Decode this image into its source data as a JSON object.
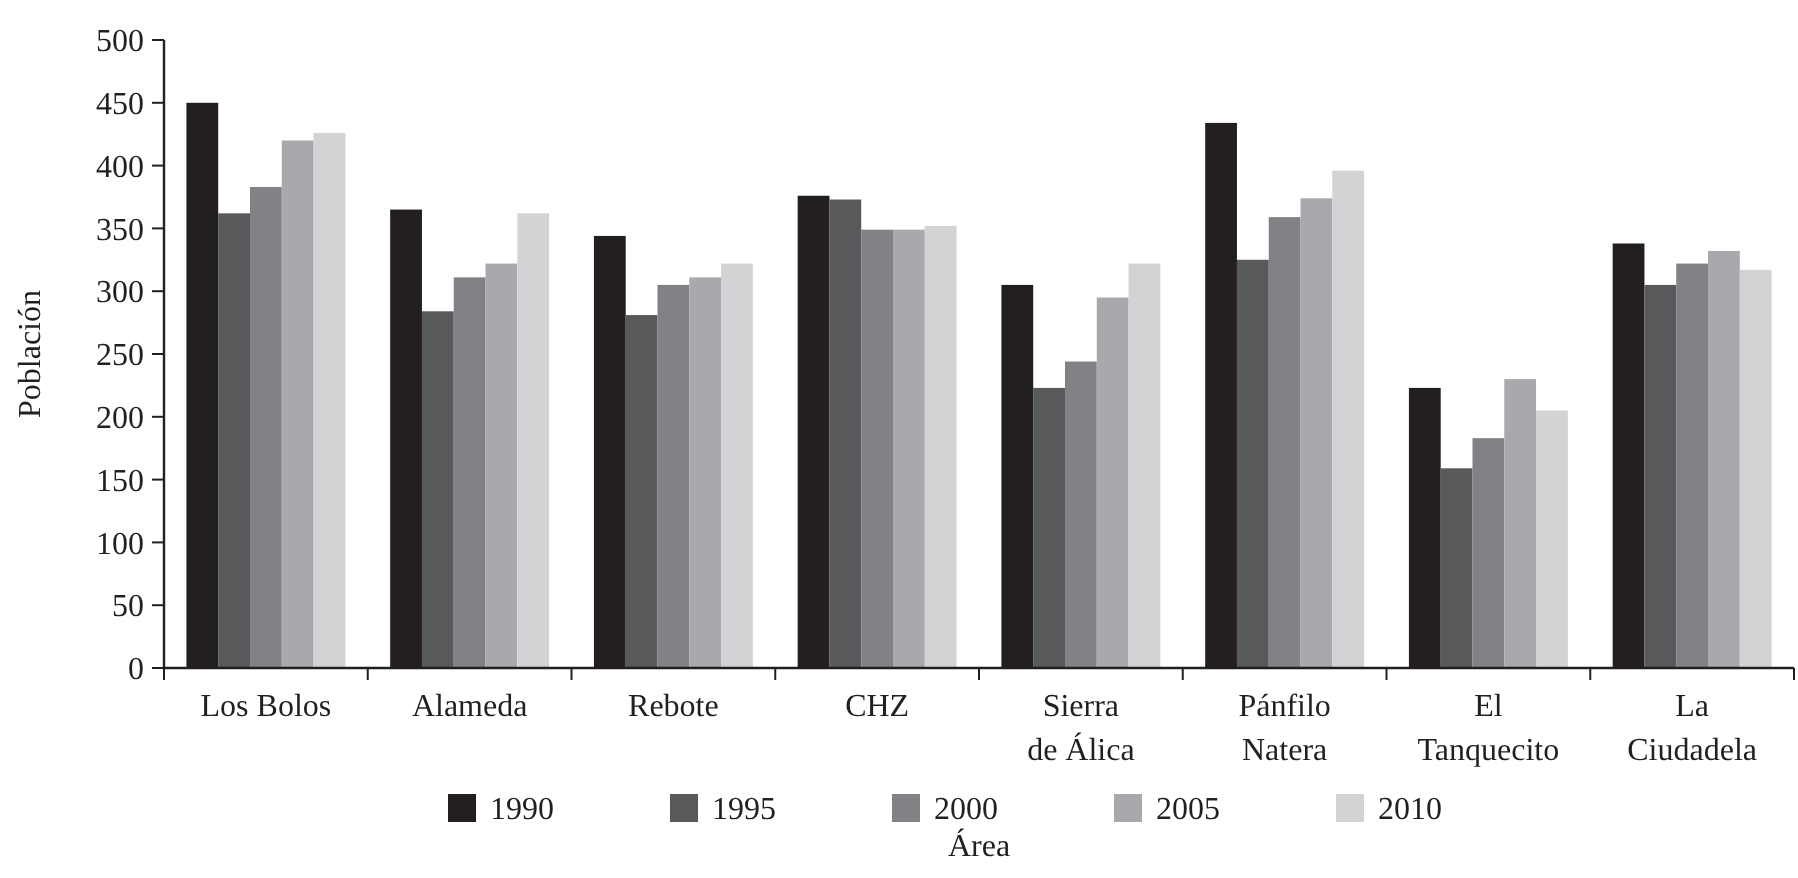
{
  "chart_data": {
    "type": "bar",
    "xlabel": "Área",
    "ylabel": "Población",
    "categories": [
      "Los Bolos",
      "Alameda",
      "Rebote",
      "CHZ",
      "Sierra de Álica",
      "Pánfilo Natera",
      "El Tanquecito",
      "La Ciudadela"
    ],
    "series": [
      {
        "name": "1990",
        "color": "#231f20",
        "values": [
          450,
          365,
          344,
          376,
          305,
          434,
          223,
          338
        ]
      },
      {
        "name": "1995",
        "color": "#58595b",
        "values": [
          362,
          284,
          281,
          373,
          223,
          325,
          159,
          305
        ]
      },
      {
        "name": "2000",
        "color": "#808285",
        "values": [
          383,
          311,
          305,
          349,
          244,
          359,
          183,
          322
        ]
      },
      {
        "name": "2005",
        "color": "#a7a9ac",
        "values": [
          420,
          322,
          311,
          349,
          295,
          374,
          230,
          332
        ]
      },
      {
        "name": "2010",
        "color": "#d1d3d4",
        "values": [
          426,
          362,
          322,
          352,
          322,
          396,
          205,
          317
        ]
      }
    ],
    "ylim": [
      0,
      500
    ],
    "yticks": [
      0,
      50,
      100,
      150,
      200,
      250,
      300,
      350,
      400,
      450,
      500
    ],
    "grid": false,
    "legend": "bottom"
  }
}
